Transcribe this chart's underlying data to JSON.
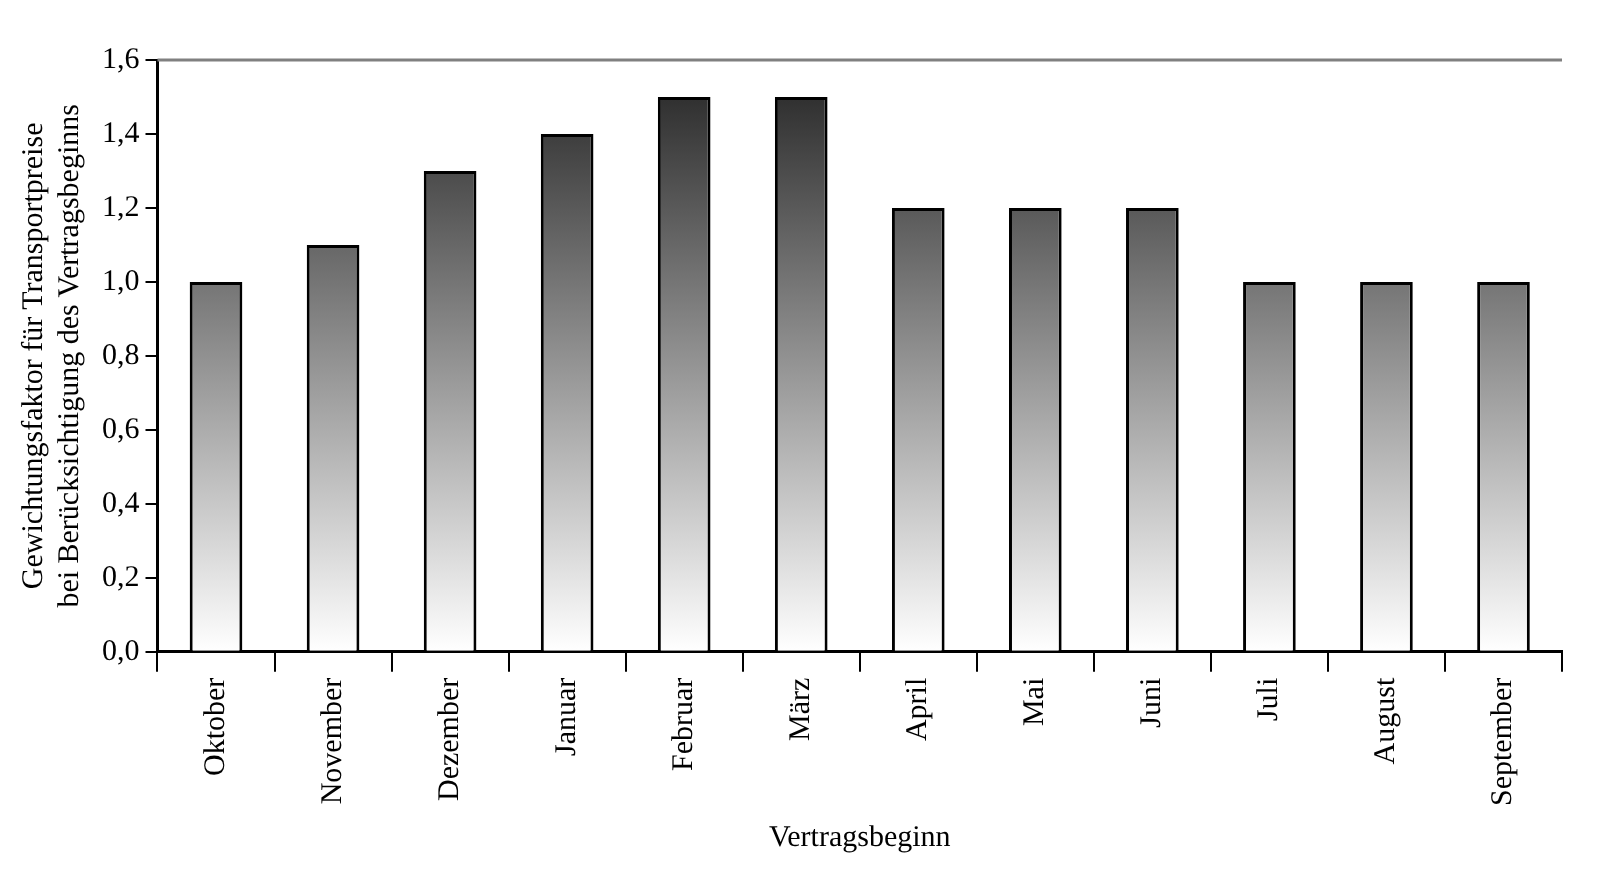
{
  "chart_data": {
    "type": "bar",
    "xlabel": "Vertragsbeginn",
    "ylabel": "Gewichtungsfaktor für Transportpreise\nbei Berücksichtigung des Vertragsbeginns",
    "categories": [
      "Oktober",
      "November",
      "Dezember",
      "Januar",
      "Februar",
      "März",
      "April",
      "Mai",
      "Juni",
      "Juli",
      "August",
      "September"
    ],
    "values": [
      1.0,
      1.1,
      1.3,
      1.4,
      1.5,
      1.5,
      1.2,
      1.2,
      1.2,
      1.0,
      1.0,
      1.0
    ],
    "color": "#222222",
    "ylim": [
      0,
      1.6
    ],
    "yticks": [
      {
        "value": 0,
        "label": "0,0"
      },
      {
        "value": 0.2,
        "label": "0,2"
      },
      {
        "value": 0.4,
        "label": "0,4"
      },
      {
        "value": 0.6,
        "label": "0,6"
      },
      {
        "value": 0.8,
        "label": "0,8"
      },
      {
        "value": 1,
        "label": "1,0"
      },
      {
        "value": 1.2,
        "label": "1,2"
      },
      {
        "value": 1.4,
        "label": "1,4"
      },
      {
        "value": 1.6,
        "label": "1,6"
      }
    ],
    "grid": false,
    "legend": false
  }
}
